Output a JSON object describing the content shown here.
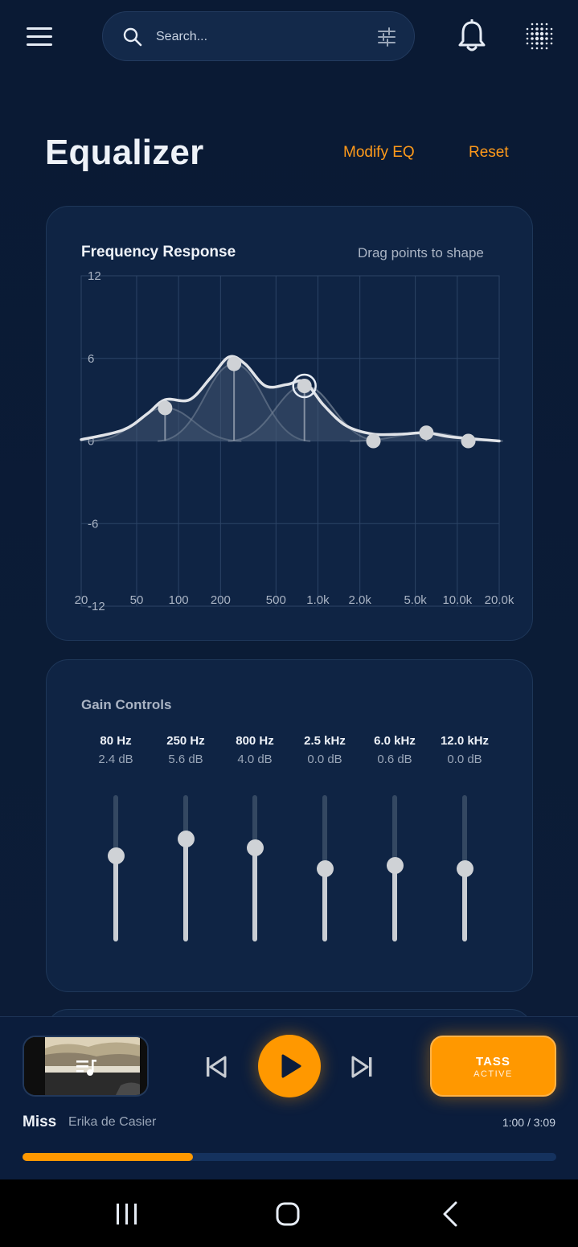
{
  "topbar": {
    "search_placeholder": "Search...",
    "icons": [
      "menu-icon",
      "search-icon",
      "filter-icon",
      "bell-icon",
      "dots-grid-icon"
    ]
  },
  "header": {
    "title": "Equalizer",
    "modify_label": "Modify EQ",
    "reset_label": "Reset"
  },
  "frequency_card": {
    "title": "Frequency Response",
    "hint": "Drag points to shape"
  },
  "chart_data": {
    "type": "line",
    "title": "Frequency Response",
    "x_scale": "log",
    "xlim": [
      20,
      20000
    ],
    "ylim": [
      -12,
      12
    ],
    "x_ticks": [
      20,
      50,
      100,
      200,
      500,
      1000,
      2000,
      5000,
      10000,
      20000
    ],
    "x_tick_labels": [
      "20",
      "50",
      "100",
      "200",
      "500",
      "1.0k",
      "2.0k",
      "5.0k",
      "10.0k",
      "20.0k"
    ],
    "y_ticks": [
      12,
      6,
      0,
      -6,
      -12
    ],
    "y_tick_labels": [
      "12",
      "6",
      "0",
      "-6",
      "-12"
    ],
    "grid": true,
    "points": [
      {
        "freq": 80,
        "gain": 2.4
      },
      {
        "freq": 250,
        "gain": 5.6
      },
      {
        "freq": 800,
        "gain": 4.0
      },
      {
        "freq": 2500,
        "gain": 0.0
      },
      {
        "freq": 6000,
        "gain": 0.6
      },
      {
        "freq": 12000,
        "gain": 0.0
      }
    ],
    "curve": [
      {
        "freq": 20,
        "gain": 0.1
      },
      {
        "freq": 40,
        "gain": 0.8
      },
      {
        "freq": 60,
        "gain": 2.0
      },
      {
        "freq": 80,
        "gain": 3.0
      },
      {
        "freq": 120,
        "gain": 3.0
      },
      {
        "freq": 170,
        "gain": 4.6
      },
      {
        "freq": 230,
        "gain": 6.1
      },
      {
        "freq": 300,
        "gain": 5.6
      },
      {
        "freq": 420,
        "gain": 4.0
      },
      {
        "freq": 600,
        "gain": 4.1
      },
      {
        "freq": 800,
        "gain": 4.3
      },
      {
        "freq": 1100,
        "gain": 2.6
      },
      {
        "freq": 1600,
        "gain": 1.1
      },
      {
        "freq": 2500,
        "gain": 0.5
      },
      {
        "freq": 4000,
        "gain": 0.5
      },
      {
        "freq": 6000,
        "gain": 0.6
      },
      {
        "freq": 9000,
        "gain": 0.3
      },
      {
        "freq": 20000,
        "gain": 0.0
      }
    ],
    "selected_point": 2,
    "colors": {
      "curve": "#e0e3e8",
      "grid": "#2c4466",
      "fill": "#3b4f6b"
    }
  },
  "gain_card": {
    "title": "Gain Controls",
    "range_db": [
      -12,
      12
    ],
    "bands": [
      {
        "freq": "80 Hz",
        "db_label": "2.4 dB",
        "gain": 2.4
      },
      {
        "freq": "250 Hz",
        "db_label": "5.6 dB",
        "gain": 5.6
      },
      {
        "freq": "800 Hz",
        "db_label": "4.0 dB",
        "gain": 4.0
      },
      {
        "freq": "2.5 kHz",
        "db_label": "0.0 dB",
        "gain": 0.0
      },
      {
        "freq": "6.0 kHz",
        "db_label": "0.6 dB",
        "gain": 0.6
      },
      {
        "freq": "12.0 kHz",
        "db_label": "0.0 dB",
        "gain": 0.0
      }
    ]
  },
  "player": {
    "song": "Miss",
    "artist": "Erika de Casier",
    "time": "1:00 / 3:09",
    "progress": 0.319,
    "tass_label": "TASS",
    "tass_status": "ACTIVE",
    "accent": "#ff9800"
  },
  "navbar": {
    "icons": [
      "recent-apps-icon",
      "home-icon",
      "back-icon"
    ]
  }
}
